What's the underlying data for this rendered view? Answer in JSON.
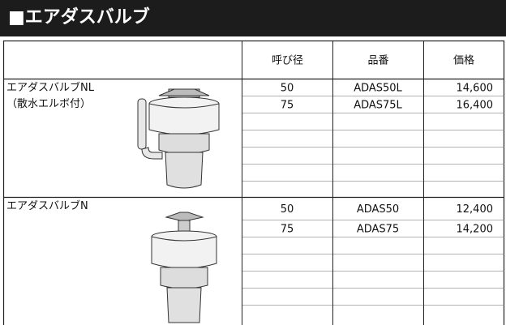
{
  "header": {
    "title": "■エアダスバルブ"
  },
  "table": {
    "columns": [
      "呼び径",
      "品番",
      "価格"
    ],
    "groups": [
      {
        "name": [
          "エアダスバルブNL",
          "（散水エルボ付）"
        ],
        "rows": [
          [
            50,
            "ADAS50L",
            "14,600"
          ],
          [
            75,
            "ADAS75L",
            "16,400"
          ]
        ]
      },
      {
        "name": [
          "エアダスバルブN"
        ],
        "rows": [
          [
            50,
            "ADAS50",
            "12,400"
          ],
          [
            75,
            "ADAS75",
            "14,200"
          ]
        ]
      }
    ]
  }
}
